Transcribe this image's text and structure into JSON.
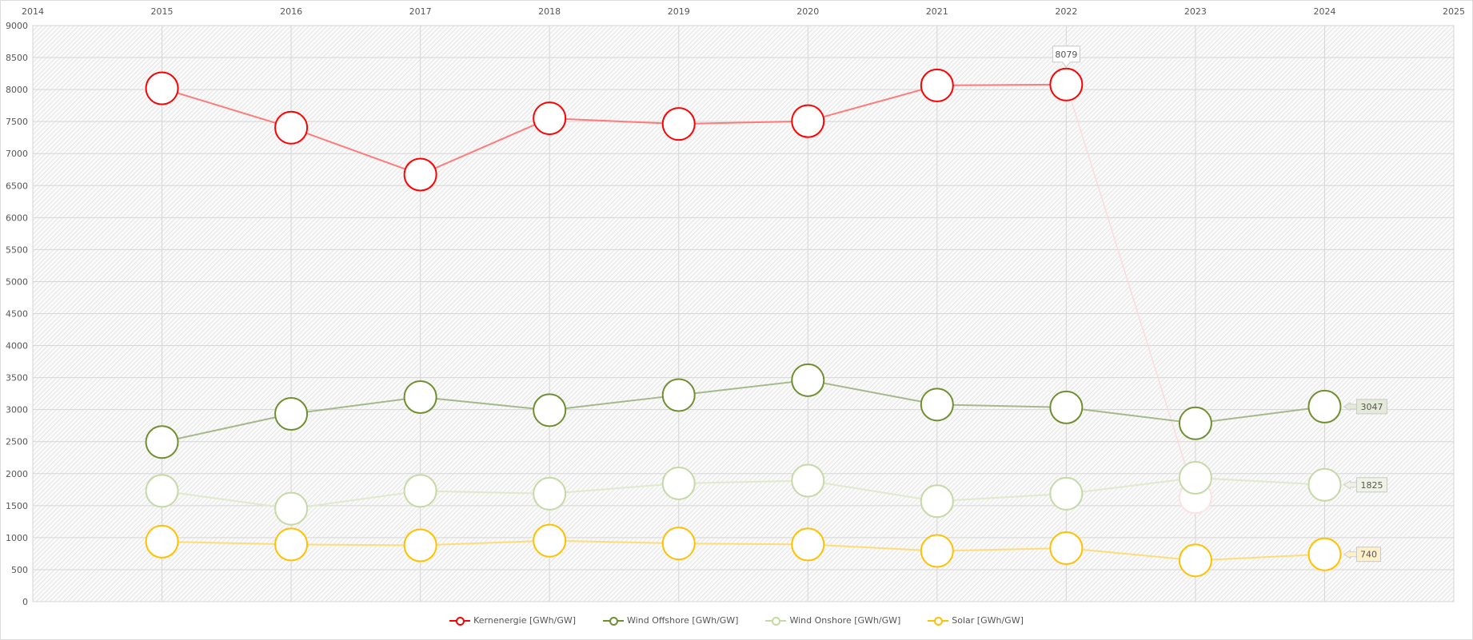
{
  "chart_data": {
    "type": "line",
    "x": [
      2014,
      2015,
      2016,
      2017,
      2018,
      2019,
      2020,
      2021,
      2022,
      2023,
      2024,
      2025
    ],
    "xlim": [
      2014,
      2025
    ],
    "ylim": [
      0,
      9000
    ],
    "yticks": [
      0,
      500,
      1000,
      1500,
      2000,
      2500,
      3000,
      3500,
      4000,
      4500,
      5000,
      5500,
      6000,
      6500,
      7000,
      7500,
      8000,
      8500,
      9000
    ],
    "grid": true,
    "legend_position": "bottom",
    "series": [
      {
        "name": "Kernenergie [GWh/GW]",
        "color": "#ff0000",
        "line_color": "#ff7a7a",
        "x": [
          2015,
          2016,
          2017,
          2018,
          2019,
          2020,
          2021,
          2022,
          2023
        ],
        "values": [
          8020,
          7405,
          6672,
          7551,
          7463,
          7507,
          8065,
          8079,
          1630
        ],
        "faded_points": [
          2023
        ]
      },
      {
        "name": "Wind Offshore [GWh/GW]",
        "color": "#6f8f2f",
        "line_color": "#a4b98a",
        "x": [
          2015,
          2016,
          2017,
          2018,
          2019,
          2020,
          2021,
          2022,
          2023,
          2024
        ],
        "values": [
          2493,
          2933,
          3196,
          2991,
          3226,
          3460,
          3079,
          3035,
          2786,
          3047
        ]
      },
      {
        "name": "Wind Onshore [GWh/GW]",
        "color": "#c5d9a5",
        "line_color": "#dfe9cc",
        "x": [
          2015,
          2016,
          2017,
          2018,
          2019,
          2020,
          2021,
          2022,
          2023,
          2024
        ],
        "values": [
          1730,
          1452,
          1730,
          1686,
          1848,
          1891,
          1569,
          1686,
          1935,
          1825
        ]
      },
      {
        "name": "Solar [GWh/GW]",
        "color": "#ffc000",
        "line_color": "#ffdc7a",
        "x": [
          2015,
          2016,
          2017,
          2018,
          2019,
          2020,
          2021,
          2022,
          2023,
          2024
        ],
        "values": [
          938,
          894,
          880,
          953,
          909,
          894,
          792,
          836,
          645,
          740
        ]
      }
    ],
    "annotations": [
      {
        "series": 0,
        "x": 2022,
        "label": "8079",
        "placement": "above"
      },
      {
        "series": 1,
        "x": 2024,
        "label": "3047",
        "placement": "right",
        "bg": "#e4ead8"
      },
      {
        "series": 2,
        "x": 2024,
        "label": "1825",
        "placement": "right",
        "bg": "#eef3e6"
      },
      {
        "series": 3,
        "x": 2024,
        "label": "740",
        "placement": "right",
        "bg": "#fff0c8"
      }
    ]
  }
}
